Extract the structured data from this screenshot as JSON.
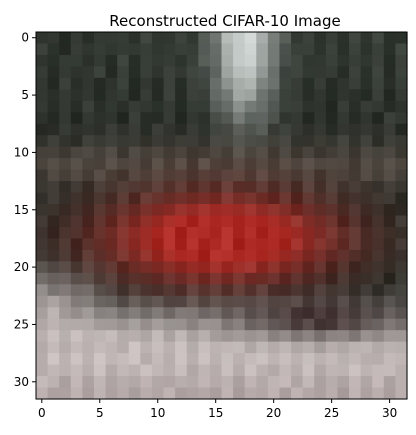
{
  "chart_data": {
    "type": "heatmap",
    "title": "Reconstructed CIFAR-10 Image",
    "xlabel": "",
    "ylabel": "",
    "xlim": [
      -0.5,
      31.5
    ],
    "ylim": [
      31.5,
      -0.5
    ],
    "x_ticks": [
      0,
      5,
      10,
      15,
      20,
      25,
      30
    ],
    "x_tick_labels": [
      "0",
      "5",
      "10",
      "15",
      "20",
      "25",
      "30"
    ],
    "y_ticks": [
      0,
      5,
      10,
      15,
      20,
      25,
      30
    ],
    "y_tick_labels": [
      "0",
      "5",
      "10",
      "15",
      "20",
      "25",
      "30"
    ],
    "image_size": [
      32,
      32
    ],
    "color_model": "rgb",
    "content_description_hint": "blurry red object (car) on light ground, dark greenish background, bright patch at top center",
    "palette": {
      "bg_top": "#3a403a",
      "bg_dark": "#2c302b",
      "highlight": "#cfd6d3",
      "car_red": "#b4302a",
      "car_dark": "#3a2626",
      "ground": "#c9bfbf",
      "ground_edge": "#a89a9a",
      "mid_tone": "#6f6259"
    }
  }
}
